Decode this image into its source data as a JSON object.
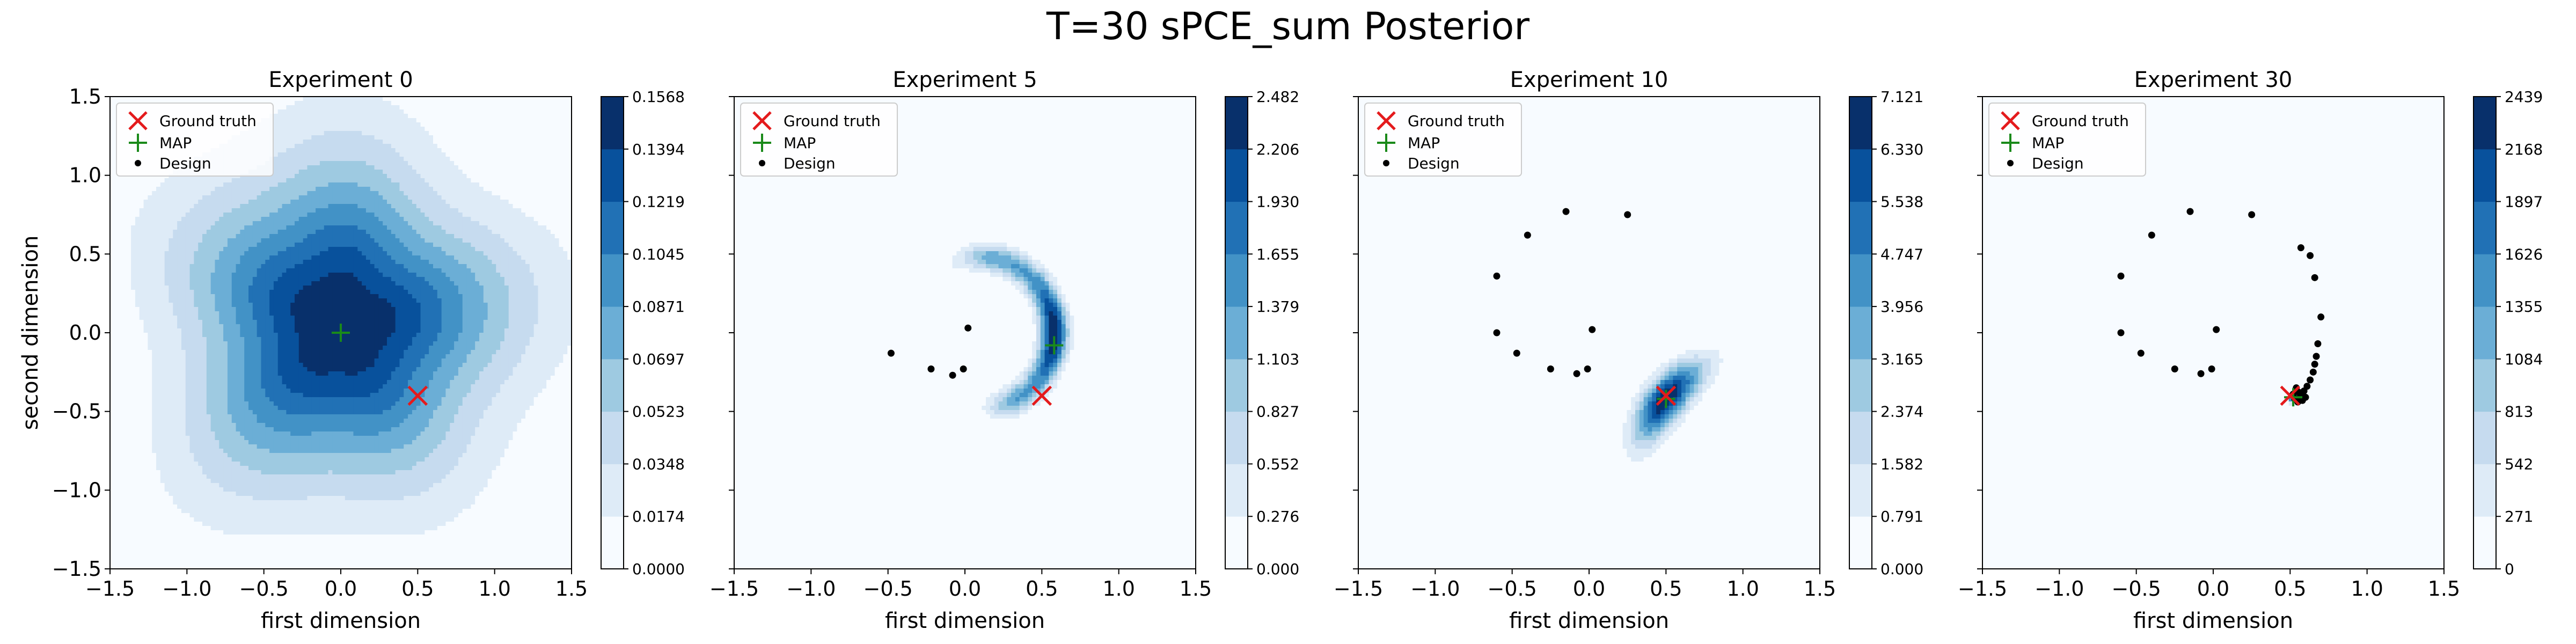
{
  "figure": {
    "title": "T=30 sPCE_sum Posterior"
  },
  "colors": {
    "ground_truth": "#e41a1c",
    "map": "#1a8a1a",
    "design": "#000000",
    "blues": [
      "#f7fbff",
      "#deebf7",
      "#c6dbef",
      "#9ecae1",
      "#6baed6",
      "#4292c6",
      "#2171b5",
      "#08519c",
      "#08306b"
    ]
  },
  "chart_data": [
    {
      "type": "contour",
      "title": "Experiment 0",
      "xlabel": "first dimension",
      "ylabel": "second dimension",
      "xlim": [
        -1.5,
        1.5
      ],
      "ylim": [
        -1.5,
        1.5
      ],
      "xticks": [
        "−1.5",
        "−1.0",
        "−0.5",
        "0.0",
        "0.5",
        "1.0",
        "1.5"
      ],
      "yticks": [
        "−1.5",
        "−1.0",
        "−0.5",
        "0.0",
        "0.5",
        "1.0",
        "1.5"
      ],
      "legend": {
        "position": "top-left",
        "entries": [
          "Ground truth",
          "MAP",
          "Design"
        ]
      },
      "ground_truth": [
        0.5,
        -0.4
      ],
      "map": [
        0.0,
        0.0
      ],
      "designs": [],
      "density": {
        "center": [
          0.0,
          0.05
        ],
        "spread": 0.95
      },
      "colorbar_ticks": [
        "0.0000",
        "0.0174",
        "0.0348",
        "0.0523",
        "0.0697",
        "0.0871",
        "0.1045",
        "0.1219",
        "0.1394",
        "0.1568"
      ]
    },
    {
      "type": "contour",
      "title": "Experiment 5",
      "xlabel": "first dimension",
      "ylabel": "",
      "xlim": [
        -1.5,
        1.5
      ],
      "ylim": [
        -1.5,
        1.5
      ],
      "xticks": [
        "−1.5",
        "−1.0",
        "−0.5",
        "0.0",
        "0.5",
        "1.0",
        "1.5"
      ],
      "legend": {
        "position": "top-left",
        "entries": [
          "Ground truth",
          "MAP",
          "Design"
        ]
      },
      "ground_truth": [
        0.5,
        -0.4
      ],
      "map": [
        0.58,
        -0.08
      ],
      "designs": [
        [
          -0.48,
          -0.13
        ],
        [
          -0.22,
          -0.23
        ],
        [
          -0.08,
          -0.27
        ],
        [
          -0.01,
          -0.23
        ],
        [
          0.02,
          0.03
        ]
      ],
      "density": {
        "arc_center": [
          0.1,
          0.0
        ],
        "arc_radius": 0.48,
        "arc_start_deg": -60,
        "arc_end_deg": 75,
        "peak_deg": 0
      },
      "colorbar_ticks": [
        "0.000",
        "0.276",
        "0.552",
        "0.827",
        "1.103",
        "1.379",
        "1.655",
        "1.930",
        "2.206",
        "2.482"
      ]
    },
    {
      "type": "contour",
      "title": "Experiment 10",
      "xlabel": "first dimension",
      "ylabel": "",
      "xlim": [
        -1.5,
        1.5
      ],
      "ylim": [
        -1.5,
        1.5
      ],
      "xticks": [
        "−1.5",
        "−1.0",
        "−0.5",
        "0.0",
        "0.5",
        "1.0",
        "1.5"
      ],
      "legend": {
        "position": "top-left",
        "entries": [
          "Ground truth",
          "MAP",
          "Design"
        ]
      },
      "ground_truth": [
        0.5,
        -0.4
      ],
      "map": [
        0.5,
        -0.42
      ],
      "designs": [
        [
          -0.15,
          0.77
        ],
        [
          0.25,
          0.75
        ],
        [
          -0.4,
          0.62
        ],
        [
          -0.6,
          0.36
        ],
        [
          -0.6,
          0.0
        ],
        [
          -0.47,
          -0.13
        ],
        [
          -0.25,
          -0.23
        ],
        [
          -0.08,
          -0.26
        ],
        [
          -0.01,
          -0.23
        ],
        [
          0.02,
          0.02
        ]
      ],
      "density": {
        "center": [
          0.5,
          -0.42
        ],
        "angle_deg": 50,
        "sx": 0.3,
        "sy": 0.12
      },
      "colorbar_ticks": [
        "0.000",
        "0.791",
        "1.582",
        "2.374",
        "3.165",
        "3.956",
        "4.747",
        "5.538",
        "6.330",
        "7.121"
      ]
    },
    {
      "type": "contour",
      "title": "Experiment 30",
      "xlabel": "first dimension",
      "ylabel": "",
      "xlim": [
        -1.5,
        1.5
      ],
      "ylim": [
        -1.5,
        1.5
      ],
      "xticks": [
        "−1.5",
        "−1.0",
        "−0.5",
        "0.0",
        "0.5",
        "1.0",
        "1.5"
      ],
      "legend": {
        "position": "top-left",
        "entries": [
          "Ground truth",
          "MAP",
          "Design"
        ]
      },
      "ground_truth": [
        0.5,
        -0.4
      ],
      "map": [
        0.52,
        -0.41
      ],
      "designs": [
        [
          -0.15,
          0.77
        ],
        [
          0.25,
          0.75
        ],
        [
          -0.4,
          0.62
        ],
        [
          -0.6,
          0.36
        ],
        [
          -0.6,
          0.0
        ],
        [
          -0.47,
          -0.13
        ],
        [
          -0.25,
          -0.23
        ],
        [
          -0.08,
          -0.26
        ],
        [
          -0.01,
          -0.23
        ],
        [
          0.02,
          0.02
        ],
        [
          0.57,
          0.54
        ],
        [
          0.63,
          0.49
        ],
        [
          0.66,
          0.35
        ],
        [
          0.7,
          0.1
        ],
        [
          0.68,
          -0.07
        ],
        [
          0.67,
          -0.15
        ],
        [
          0.66,
          -0.2
        ],
        [
          0.65,
          -0.25
        ],
        [
          0.63,
          -0.3
        ],
        [
          0.61,
          -0.34
        ],
        [
          0.59,
          -0.37
        ],
        [
          0.57,
          -0.4
        ],
        [
          0.55,
          -0.42
        ],
        [
          0.53,
          -0.42
        ],
        [
          0.54,
          -0.35
        ],
        [
          0.56,
          -0.38
        ],
        [
          0.58,
          -0.43
        ],
        [
          0.6,
          -0.41
        ],
        [
          0.52,
          -0.39
        ],
        [
          0.55,
          -0.44
        ]
      ],
      "density": {
        "center": [
          0.52,
          -0.41
        ],
        "sx": 0.03,
        "sy": 0.03
      },
      "colorbar_ticks": [
        "0",
        "271",
        "542",
        "813",
        "1084",
        "1355",
        "1626",
        "1897",
        "2168",
        "2439"
      ]
    }
  ]
}
